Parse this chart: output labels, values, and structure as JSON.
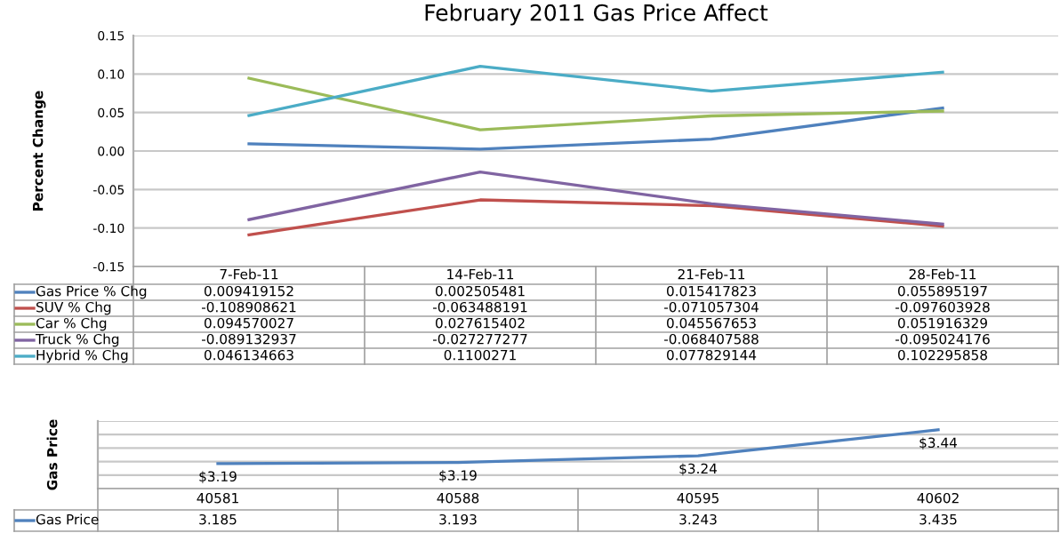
{
  "chart_data": [
    {
      "type": "line",
      "title": "February 2011 Gas Price Affect",
      "ylabel": "Percent Change",
      "categories": [
        "7-Feb-11",
        "14-Feb-11",
        "21-Feb-11",
        "28-Feb-11"
      ],
      "series": [
        {
          "name": "Gas Price % Chg",
          "color": "#4f81bd",
          "values": [
            0.009419152,
            0.002505481,
            0.015417823,
            0.055895197
          ]
        },
        {
          "name": "SUV % Chg",
          "color": "#c0504d",
          "values": [
            -0.108908621,
            -0.063488191,
            -0.071057304,
            -0.097603928
          ]
        },
        {
          "name": "Car % Chg",
          "color": "#9bbb59",
          "values": [
            0.094570027,
            0.027615402,
            0.045567653,
            0.051916329
          ]
        },
        {
          "name": "Truck % Chg",
          "color": "#8064a2",
          "values": [
            -0.089132937,
            -0.027277277,
            -0.068407588,
            -0.095024176
          ]
        },
        {
          "name": "Hybrid % Chg",
          "color": "#4bacc6",
          "values": [
            0.046134663,
            0.1100271,
            0.077829144,
            0.102295858
          ]
        }
      ],
      "ylim": [
        -0.15,
        0.15
      ],
      "yticks": [
        {
          "value": -0.15,
          "label": "-0.15"
        },
        {
          "value": -0.1,
          "label": "-0.10"
        },
        {
          "value": -0.05,
          "label": "-0.05"
        },
        {
          "value": 0,
          "label": "0.00"
        },
        {
          "value": 0.05,
          "label": "0.05"
        },
        {
          "value": 0.1,
          "label": "0.10"
        },
        {
          "value": 0.15,
          "label": "0.15"
        }
      ],
      "grid": "y",
      "legend": "bottom",
      "marker": "none",
      "data_labels": true
    },
    {
      "type": "line",
      "ylabel": "Gas Price",
      "categories": [
        "40581",
        "40588",
        "40595",
        "40602"
      ],
      "series": [
        {
          "name": "Gas Price",
          "color": "#4f81bd",
          "values": [
            3.185,
            3.193,
            3.243,
            3.435
          ]
        }
      ],
      "annotations": [
        {
          "text": "$3.19",
          "x": "40581",
          "y": 3.185
        },
        {
          "text": "$3.19",
          "x": "40588",
          "y": 3.193
        },
        {
          "text": "$3.24",
          "x": "40595",
          "y": 3.243
        },
        {
          "text": "$3.44",
          "x": "40602",
          "y": 3.435
        }
      ],
      "ylim": [
        3.0,
        3.5
      ],
      "yticks": [
        {
          "value": 3.0,
          "label": null
        },
        {
          "value": 3.1,
          "label": null
        },
        {
          "value": 3.2,
          "label": null
        },
        {
          "value": 3.3,
          "label": null
        },
        {
          "value": 3.4,
          "label": null
        },
        {
          "value": 3.5,
          "label": null
        }
      ],
      "grid": "y",
      "legend": "bottom",
      "marker": "none",
      "data_labels": true
    }
  ]
}
